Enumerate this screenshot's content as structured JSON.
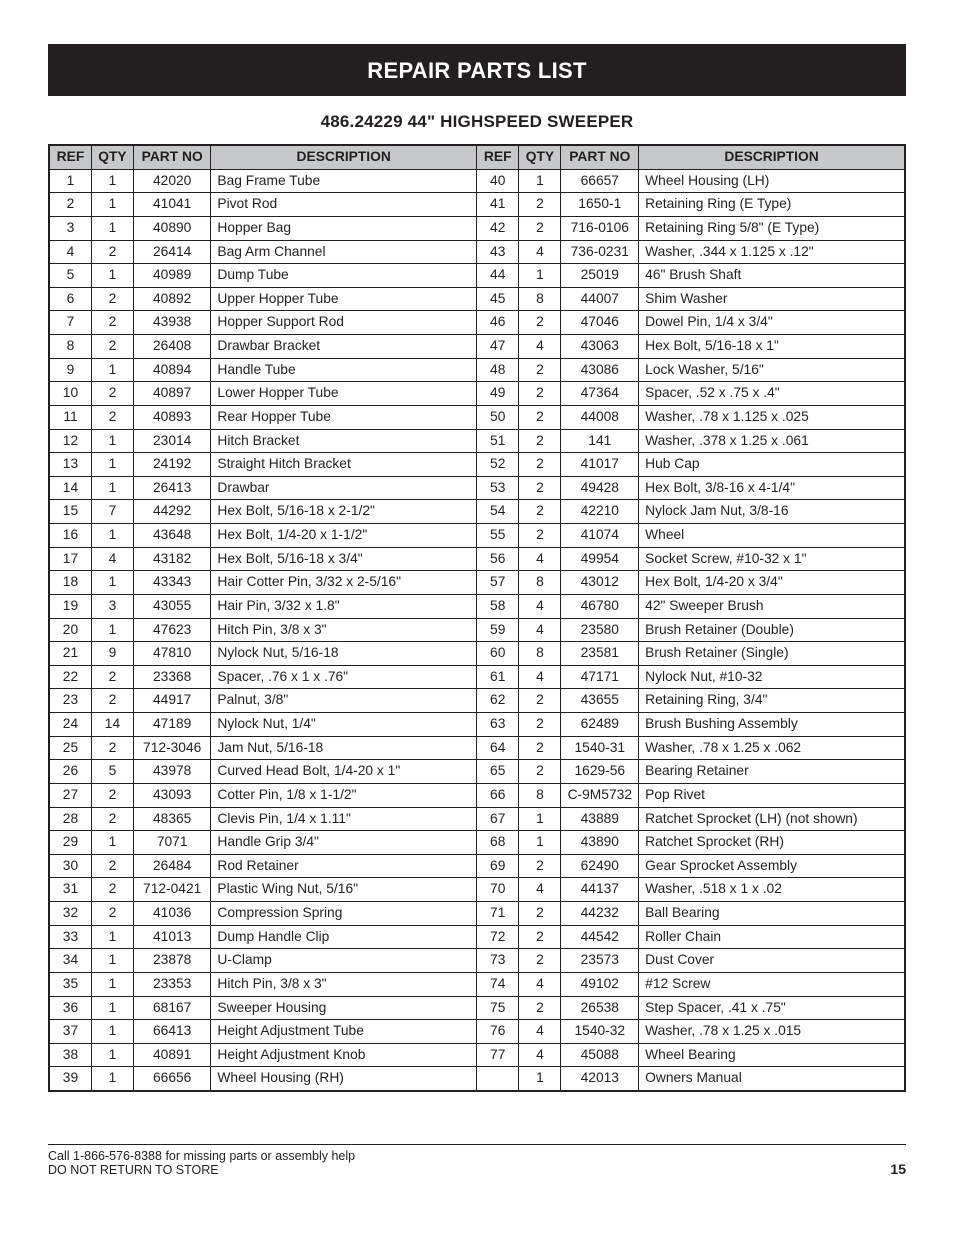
{
  "title": "REPAIR PARTS LIST",
  "subtitle": "486.24229 44\" HIGHSPEED SWEEPER",
  "headers": {
    "ref": "REF",
    "qty": "QTY",
    "part": "PART NO",
    "desc": "DESCRIPTION"
  },
  "left": [
    {
      "ref": "1",
      "qty": "1",
      "part": "42020",
      "desc": "Bag Frame Tube"
    },
    {
      "ref": "2",
      "qty": "1",
      "part": "41041",
      "desc": "Pivot Rod"
    },
    {
      "ref": "3",
      "qty": "1",
      "part": "40890",
      "desc": "Hopper Bag"
    },
    {
      "ref": "4",
      "qty": "2",
      "part": "26414",
      "desc": "Bag Arm Channel"
    },
    {
      "ref": "5",
      "qty": "1",
      "part": "40989",
      "desc": "Dump Tube"
    },
    {
      "ref": "6",
      "qty": "2",
      "part": "40892",
      "desc": "Upper Hopper Tube"
    },
    {
      "ref": "7",
      "qty": "2",
      "part": "43938",
      "desc": "Hopper Support Rod"
    },
    {
      "ref": "8",
      "qty": "2",
      "part": "26408",
      "desc": "Drawbar Bracket"
    },
    {
      "ref": "9",
      "qty": "1",
      "part": "40894",
      "desc": "Handle Tube"
    },
    {
      "ref": "10",
      "qty": "2",
      "part": "40897",
      "desc": "Lower Hopper Tube"
    },
    {
      "ref": "11",
      "qty": "2",
      "part": "40893",
      "desc": "Rear Hopper Tube"
    },
    {
      "ref": "12",
      "qty": "1",
      "part": "23014",
      "desc": "Hitch Bracket"
    },
    {
      "ref": "13",
      "qty": "1",
      "part": "24192",
      "desc": "Straight Hitch Bracket"
    },
    {
      "ref": "14",
      "qty": "1",
      "part": "26413",
      "desc": "Drawbar"
    },
    {
      "ref": "15",
      "qty": "7",
      "part": "44292",
      "desc": "Hex Bolt, 5/16-18 x 2-1/2\""
    },
    {
      "ref": "16",
      "qty": "1",
      "part": "43648",
      "desc": "Hex Bolt, 1/4-20 x 1-1/2\""
    },
    {
      "ref": "17",
      "qty": "4",
      "part": "43182",
      "desc": "Hex Bolt, 5/16-18 x 3/4\""
    },
    {
      "ref": "18",
      "qty": "1",
      "part": "43343",
      "desc": "Hair Cotter Pin, 3/32 x 2-5/16\""
    },
    {
      "ref": "19",
      "qty": "3",
      "part": "43055",
      "desc": "Hair Pin, 3/32 x 1.8\""
    },
    {
      "ref": "20",
      "qty": "1",
      "part": "47623",
      "desc": "Hitch Pin, 3/8 x 3\""
    },
    {
      "ref": "21",
      "qty": "9",
      "part": "47810",
      "desc": "Nylock Nut, 5/16-18"
    },
    {
      "ref": "22",
      "qty": "2",
      "part": "23368",
      "desc": "Spacer, .76 x 1 x .76\""
    },
    {
      "ref": "23",
      "qty": "2",
      "part": "44917",
      "desc": "Palnut, 3/8\""
    },
    {
      "ref": "24",
      "qty": "14",
      "part": "47189",
      "desc": "Nylock Nut, 1/4\""
    },
    {
      "ref": "25",
      "qty": "2",
      "part": "712-3046",
      "desc": "Jam Nut, 5/16-18"
    },
    {
      "ref": "26",
      "qty": "5",
      "part": "43978",
      "desc": "Curved Head Bolt, 1/4-20 x 1\""
    },
    {
      "ref": "27",
      "qty": "2",
      "part": "43093",
      "desc": "Cotter Pin, 1/8 x 1-1/2\""
    },
    {
      "ref": "28",
      "qty": "2",
      "part": "48365",
      "desc": "Clevis Pin, 1/4 x 1.11\""
    },
    {
      "ref": "29",
      "qty": "1",
      "part": "7071",
      "desc": "Handle Grip 3/4\""
    },
    {
      "ref": "30",
      "qty": "2",
      "part": "26484",
      "desc": "Rod Retainer"
    },
    {
      "ref": "31",
      "qty": "2",
      "part": "712-0421",
      "desc": "Plastic Wing Nut, 5/16\""
    },
    {
      "ref": "32",
      "qty": "2",
      "part": "41036",
      "desc": "Compression Spring"
    },
    {
      "ref": "33",
      "qty": "1",
      "part": "41013",
      "desc": "Dump Handle Clip"
    },
    {
      "ref": "34",
      "qty": "1",
      "part": "23878",
      "desc": "U-Clamp"
    },
    {
      "ref": "35",
      "qty": "1",
      "part": "23353",
      "desc": "Hitch Pin, 3/8 x 3\""
    },
    {
      "ref": "36",
      "qty": "1",
      "part": "68167",
      "desc": "Sweeper Housing"
    },
    {
      "ref": "37",
      "qty": "1",
      "part": "66413",
      "desc": "Height Adjustment Tube"
    },
    {
      "ref": "38",
      "qty": "1",
      "part": "40891",
      "desc": "Height Adjustment Knob"
    },
    {
      "ref": "39",
      "qty": "1",
      "part": "66656",
      "desc": "Wheel Housing (RH)"
    }
  ],
  "right": [
    {
      "ref": "40",
      "qty": "1",
      "part": "66657",
      "desc": "Wheel Housing (LH)"
    },
    {
      "ref": "41",
      "qty": "2",
      "part": "1650-1",
      "desc": "Retaining Ring (E Type)"
    },
    {
      "ref": "42",
      "qty": "2",
      "part": "716-0106",
      "desc": "Retaining Ring 5/8\" (E Type)"
    },
    {
      "ref": "43",
      "qty": "4",
      "part": "736-0231",
      "desc": "Washer, .344 x 1.125 x .12\""
    },
    {
      "ref": "44",
      "qty": "1",
      "part": "25019",
      "desc": "46\" Brush Shaft"
    },
    {
      "ref": "45",
      "qty": "8",
      "part": "44007",
      "desc": "Shim Washer"
    },
    {
      "ref": "46",
      "qty": "2",
      "part": "47046",
      "desc": "Dowel Pin, 1/4 x 3/4\""
    },
    {
      "ref": "47",
      "qty": "4",
      "part": "43063",
      "desc": "Hex Bolt, 5/16-18 x 1\""
    },
    {
      "ref": "48",
      "qty": "2",
      "part": "43086",
      "desc": "Lock Washer, 5/16\""
    },
    {
      "ref": "49",
      "qty": "2",
      "part": "47364",
      "desc": "Spacer, .52 x .75 x .4\""
    },
    {
      "ref": "50",
      "qty": "2",
      "part": "44008",
      "desc": "Washer, .78 x 1.125 x .025"
    },
    {
      "ref": "51",
      "qty": "2",
      "part": "141",
      "desc": "Washer, .378 x 1.25 x .061"
    },
    {
      "ref": "52",
      "qty": "2",
      "part": "41017",
      "desc": "Hub Cap"
    },
    {
      "ref": "53",
      "qty": "2",
      "part": "49428",
      "desc": "Hex Bolt, 3/8-16 x 4-1/4\""
    },
    {
      "ref": "54",
      "qty": "2",
      "part": "42210",
      "desc": "Nylock Jam Nut, 3/8-16"
    },
    {
      "ref": "55",
      "qty": "2",
      "part": "41074",
      "desc": "Wheel"
    },
    {
      "ref": "56",
      "qty": "4",
      "part": "49954",
      "desc": "Socket Screw, #10-32 x 1\""
    },
    {
      "ref": "57",
      "qty": "8",
      "part": "43012",
      "desc": "Hex Bolt, 1/4-20 x 3/4\""
    },
    {
      "ref": "58",
      "qty": "4",
      "part": "46780",
      "desc": "42\" Sweeper Brush"
    },
    {
      "ref": "59",
      "qty": "4",
      "part": "23580",
      "desc": "Brush Retainer (Double)"
    },
    {
      "ref": "60",
      "qty": "8",
      "part": "23581",
      "desc": "Brush Retainer (Single)"
    },
    {
      "ref": "61",
      "qty": "4",
      "part": "47171",
      "desc": "Nylock Nut, #10-32"
    },
    {
      "ref": "62",
      "qty": "2",
      "part": "43655",
      "desc": "Retaining Ring, 3/4\""
    },
    {
      "ref": "63",
      "qty": "2",
      "part": "62489",
      "desc": "Brush Bushing Assembly"
    },
    {
      "ref": "64",
      "qty": "2",
      "part": "1540-31",
      "desc": "Washer, .78 x 1.25 x .062"
    },
    {
      "ref": "65",
      "qty": "2",
      "part": "1629-56",
      "desc": "Bearing Retainer"
    },
    {
      "ref": "66",
      "qty": "8",
      "part": "C-9M5732",
      "desc": "Pop Rivet"
    },
    {
      "ref": "67",
      "qty": "1",
      "part": "43889",
      "desc": "Ratchet Sprocket (LH) (not shown)"
    },
    {
      "ref": "68",
      "qty": "1",
      "part": "43890",
      "desc": "Ratchet Sprocket (RH)"
    },
    {
      "ref": "69",
      "qty": "2",
      "part": "62490",
      "desc": "Gear Sprocket Assembly"
    },
    {
      "ref": "70",
      "qty": "4",
      "part": "44137",
      "desc": "Washer, .518 x 1 x .02"
    },
    {
      "ref": "71",
      "qty": "2",
      "part": "44232",
      "desc": "Ball Bearing"
    },
    {
      "ref": "72",
      "qty": "2",
      "part": "44542",
      "desc": "Roller Chain"
    },
    {
      "ref": "73",
      "qty": "2",
      "part": "23573",
      "desc": "Dust Cover"
    },
    {
      "ref": "74",
      "qty": "4",
      "part": "49102",
      "desc": "#12 Screw"
    },
    {
      "ref": "75",
      "qty": "2",
      "part": "26538",
      "desc": "Step Spacer, .41 x .75\""
    },
    {
      "ref": "76",
      "qty": "4",
      "part": "1540-32",
      "desc": "Washer, .78 x 1.25 x .015"
    },
    {
      "ref": "77",
      "qty": "4",
      "part": "45088",
      "desc": "Wheel Bearing"
    },
    {
      "ref": "",
      "qty": "1",
      "part": "42013",
      "desc": "Owners Manual"
    }
  ],
  "footer": {
    "line1": "Call 1-866-576-8388 for missing parts or assembly help",
    "line2": "DO NOT RETURN TO STORE",
    "page": "15"
  }
}
